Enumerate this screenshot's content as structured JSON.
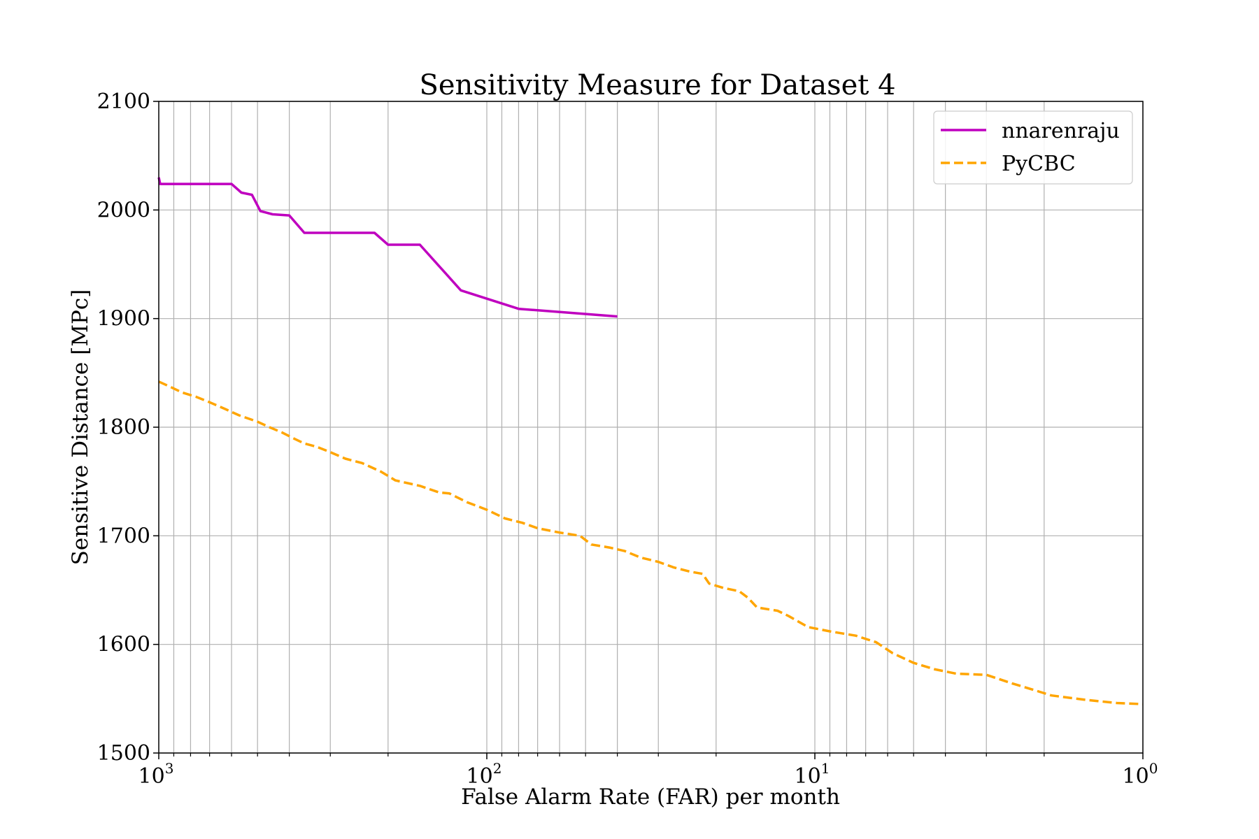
{
  "chart_data": {
    "type": "line",
    "title": "Sensitivity Measure for Dataset 4",
    "xlabel": "False Alarm Rate (FAR) per month",
    "ylabel": "Sensitive Distance [MPc]",
    "x_scale": "log",
    "x_inverted": true,
    "xlim": [
      1000,
      1
    ],
    "ylim": [
      1500,
      2100
    ],
    "grid": true,
    "legend_position": "top-right",
    "x_ticks": [
      {
        "value": 1000,
        "base": "10",
        "exp": "3"
      },
      {
        "value": 100,
        "base": "10",
        "exp": "2"
      },
      {
        "value": 10,
        "base": "10",
        "exp": "1"
      },
      {
        "value": 1,
        "base": "10",
        "exp": "0"
      }
    ],
    "y_ticks": [
      "1500",
      "1600",
      "1700",
      "1800",
      "1900",
      "2000",
      "2100"
    ],
    "series": [
      {
        "name": "nnarenraju",
        "color": "#bf00bf",
        "dash": "solid",
        "points": [
          [
            1000,
            2030
          ],
          [
            990,
            2024
          ],
          [
            600,
            2024
          ],
          [
            560,
            2016
          ],
          [
            520,
            2014
          ],
          [
            490,
            1999
          ],
          [
            450,
            1996
          ],
          [
            400,
            1995
          ],
          [
            360,
            1979
          ],
          [
            220,
            1979
          ],
          [
            200,
            1968
          ],
          [
            160,
            1968
          ],
          [
            120,
            1926
          ],
          [
            80,
            1909
          ],
          [
            40,
            1902
          ]
        ]
      },
      {
        "name": "PyCBC",
        "color": "#ffa500",
        "dash": "dashed",
        "points": [
          [
            1000,
            1842
          ],
          [
            920,
            1837
          ],
          [
            850,
            1832
          ],
          [
            770,
            1828
          ],
          [
            700,
            1823
          ],
          [
            630,
            1817
          ],
          [
            570,
            1811
          ],
          [
            500,
            1805
          ],
          [
            460,
            1800
          ],
          [
            420,
            1795
          ],
          [
            390,
            1790
          ],
          [
            360,
            1785
          ],
          [
            330,
            1782
          ],
          [
            300,
            1777
          ],
          [
            270,
            1771
          ],
          [
            240,
            1767
          ],
          [
            210,
            1759
          ],
          [
            190,
            1751
          ],
          [
            160,
            1746
          ],
          [
            140,
            1740
          ],
          [
            130,
            1739
          ],
          [
            115,
            1731
          ],
          [
            100,
            1724
          ],
          [
            88,
            1716
          ],
          [
            78,
            1712
          ],
          [
            70,
            1707
          ],
          [
            60,
            1703
          ],
          [
            52,
            1700
          ],
          [
            48,
            1692
          ],
          [
            42,
            1689
          ],
          [
            38,
            1686
          ],
          [
            34,
            1680
          ],
          [
            30,
            1676
          ],
          [
            27,
            1671
          ],
          [
            24,
            1667
          ],
          [
            22,
            1665
          ],
          [
            21,
            1656
          ],
          [
            19,
            1652
          ],
          [
            17,
            1649
          ],
          [
            16,
            1643
          ],
          [
            15,
            1634
          ],
          [
            13,
            1631
          ],
          [
            12,
            1626
          ],
          [
            10.5,
            1616
          ],
          [
            9,
            1612
          ],
          [
            7.5,
            1608
          ],
          [
            6.5,
            1602
          ],
          [
            5.8,
            1592
          ],
          [
            5,
            1583
          ],
          [
            4.3,
            1577
          ],
          [
            3.7,
            1573
          ],
          [
            3,
            1572
          ],
          [
            2.5,
            1564
          ],
          [
            2.2,
            1559
          ],
          [
            1.9,
            1553
          ],
          [
            1.5,
            1549
          ],
          [
            1.2,
            1546
          ],
          [
            1,
            1545
          ]
        ]
      }
    ]
  }
}
